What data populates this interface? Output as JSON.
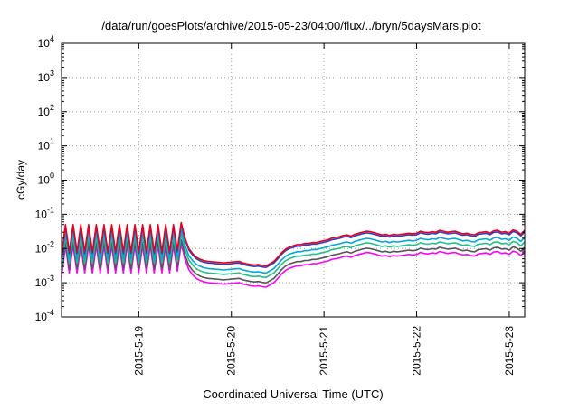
{
  "chart_data": {
    "type": "line",
    "title": "/data/run/goesPlots/archive/2015-05-23/04:00/flux/../bryn/5daysMars.plot",
    "xlabel": "Coordinated Universal Time (UTC)",
    "ylabel": "cGy/day",
    "yscale": "log",
    "ylim": [
      0.0001,
      10000
    ],
    "xlim": [
      "2015-05-18 04:00",
      "2015-05-23 04:00"
    ],
    "grid": true,
    "x_ticks": [
      "2015-5-19",
      "2015-5-20",
      "2015-5-21",
      "2015-5-22",
      "2015-5-23"
    ],
    "y_ticks": [
      {
        "base": "10",
        "exp": "-4"
      },
      {
        "base": "10",
        "exp": "-3"
      },
      {
        "base": "10",
        "exp": "-2"
      },
      {
        "base": "10",
        "exp": "-1"
      },
      {
        "base": "10",
        "exp": "0"
      },
      {
        "base": "10",
        "exp": "1"
      },
      {
        "base": "10",
        "exp": "2"
      },
      {
        "base": "10",
        "exp": "3"
      },
      {
        "base": "10",
        "exp": "4"
      }
    ],
    "series_style": [
      {
        "color": "#e8001c",
        "factor": 1.0
      },
      {
        "color": "#2f3fbf",
        "factor": 0.9
      },
      {
        "color": "#00a8d8",
        "factor": 0.62
      },
      {
        "color": "#22c08a",
        "factor": 0.46
      },
      {
        "color": "#555555",
        "factor": 0.32
      },
      {
        "color": "#ff00ff",
        "factor": 0.24
      }
    ],
    "series": [
      {
        "x": [
          "2015-05-18 04:00",
          "2015-05-18 05:00",
          "2015-05-18 06:00",
          "2015-05-18 07:00",
          "2015-05-18 08:00",
          "2015-05-18 09:00",
          "2015-05-18 10:00",
          "2015-05-18 11:00",
          "2015-05-18 12:00",
          "2015-05-18 13:00",
          "2015-05-18 14:00",
          "2015-05-18 15:00",
          "2015-05-18 16:00",
          "2015-05-18 17:00",
          "2015-05-18 18:00",
          "2015-05-18 19:00",
          "2015-05-18 20:00",
          "2015-05-18 21:00",
          "2015-05-18 22:00",
          "2015-05-18 23:00",
          "2015-05-19 00:00",
          "2015-05-19 01:00",
          "2015-05-19 02:00",
          "2015-05-19 03:00",
          "2015-05-19 04:00",
          "2015-05-19 05:00",
          "2015-05-19 06:00",
          "2015-05-19 07:00",
          "2015-05-19 08:00",
          "2015-05-19 09:00",
          "2015-05-19 10:00",
          "2015-05-19 11:00",
          "2015-05-19 12:00",
          "2015-05-19 13:00",
          "2015-05-19 14:00",
          "2015-05-19 15:00",
          "2015-05-19 16:00",
          "2015-05-19 17:00",
          "2015-05-19 18:00",
          "2015-05-19 19:00",
          "2015-05-19 20:00",
          "2015-05-19 21:00",
          "2015-05-19 22:00",
          "2015-05-19 23:00",
          "2015-05-20 00:00",
          "2015-05-20 01:00",
          "2015-05-20 02:00",
          "2015-05-20 03:00",
          "2015-05-20 04:00",
          "2015-05-20 05:00",
          "2015-05-20 06:00",
          "2015-05-20 07:00",
          "2015-05-20 08:00",
          "2015-05-20 09:00",
          "2015-05-20 10:00",
          "2015-05-20 11:00",
          "2015-05-20 12:00",
          "2015-05-20 13:00",
          "2015-05-20 14:00",
          "2015-05-20 15:00",
          "2015-05-20 16:00",
          "2015-05-20 17:00",
          "2015-05-20 18:00",
          "2015-05-20 19:00",
          "2015-05-20 20:00",
          "2015-05-20 21:00",
          "2015-05-20 22:00",
          "2015-05-20 23:00",
          "2015-05-21 00:00",
          "2015-05-21 01:00",
          "2015-05-21 02:00",
          "2015-05-21 03:00",
          "2015-05-21 04:00",
          "2015-05-21 05:00",
          "2015-05-21 06:00",
          "2015-05-21 07:00",
          "2015-05-21 08:00",
          "2015-05-21 09:00",
          "2015-05-21 10:00",
          "2015-05-21 11:00",
          "2015-05-21 12:00",
          "2015-05-21 13:00",
          "2015-05-21 14:00",
          "2015-05-21 15:00",
          "2015-05-21 16:00",
          "2015-05-21 17:00",
          "2015-05-21 18:00",
          "2015-05-21 19:00",
          "2015-05-21 20:00",
          "2015-05-21 21:00",
          "2015-05-21 22:00",
          "2015-05-21 23:00",
          "2015-05-22 00:00",
          "2015-05-22 01:00",
          "2015-05-22 02:00",
          "2015-05-22 03:00",
          "2015-05-22 04:00",
          "2015-05-22 05:00",
          "2015-05-22 06:00",
          "2015-05-22 07:00",
          "2015-05-22 08:00",
          "2015-05-22 09:00",
          "2015-05-22 10:00",
          "2015-05-22 11:00",
          "2015-05-22 12:00",
          "2015-05-22 13:00",
          "2015-05-22 14:00",
          "2015-05-22 15:00",
          "2015-05-22 16:00",
          "2015-05-22 17:00",
          "2015-05-22 18:00",
          "2015-05-22 19:00",
          "2015-05-22 20:00",
          "2015-05-22 21:00",
          "2015-05-22 22:00",
          "2015-05-22 23:00",
          "2015-05-23 00:00",
          "2015-05-23 01:00",
          "2015-05-23 02:00",
          "2015-05-23 03:00",
          "2015-05-23 04:00"
        ],
        "y": [
          0.006,
          0.05,
          0.008,
          0.05,
          0.008,
          0.05,
          0.008,
          0.05,
          0.008,
          0.05,
          0.008,
          0.05,
          0.008,
          0.05,
          0.008,
          0.05,
          0.008,
          0.05,
          0.008,
          0.05,
          0.008,
          0.05,
          0.008,
          0.05,
          0.008,
          0.05,
          0.008,
          0.05,
          0.008,
          0.05,
          0.009,
          0.057,
          0.02,
          0.01,
          0.007,
          0.0055,
          0.0048,
          0.0044,
          0.0042,
          0.0041,
          0.004,
          0.0039,
          0.0038,
          0.0039,
          0.004,
          0.0041,
          0.0042,
          0.0038,
          0.0036,
          0.0034,
          0.0033,
          0.0034,
          0.0032,
          0.0031,
          0.0036,
          0.0042,
          0.0055,
          0.0075,
          0.0095,
          0.011,
          0.012,
          0.013,
          0.013,
          0.014,
          0.014,
          0.015,
          0.015,
          0.016,
          0.017,
          0.018,
          0.02,
          0.021,
          0.022,
          0.024,
          0.025,
          0.023,
          0.026,
          0.028,
          0.03,
          0.032,
          0.031,
          0.029,
          0.027,
          0.025,
          0.026,
          0.024,
          0.026,
          0.025,
          0.026,
          0.027,
          0.028,
          0.027,
          0.028,
          0.032,
          0.03,
          0.029,
          0.031,
          0.03,
          0.034,
          0.032,
          0.03,
          0.031,
          0.032,
          0.029,
          0.027,
          0.028,
          0.026,
          0.025,
          0.029,
          0.03,
          0.031,
          0.028,
          0.033,
          0.034,
          0.03,
          0.031,
          0.028,
          0.035,
          0.032,
          0.026,
          0.034
        ]
      }
    ]
  }
}
